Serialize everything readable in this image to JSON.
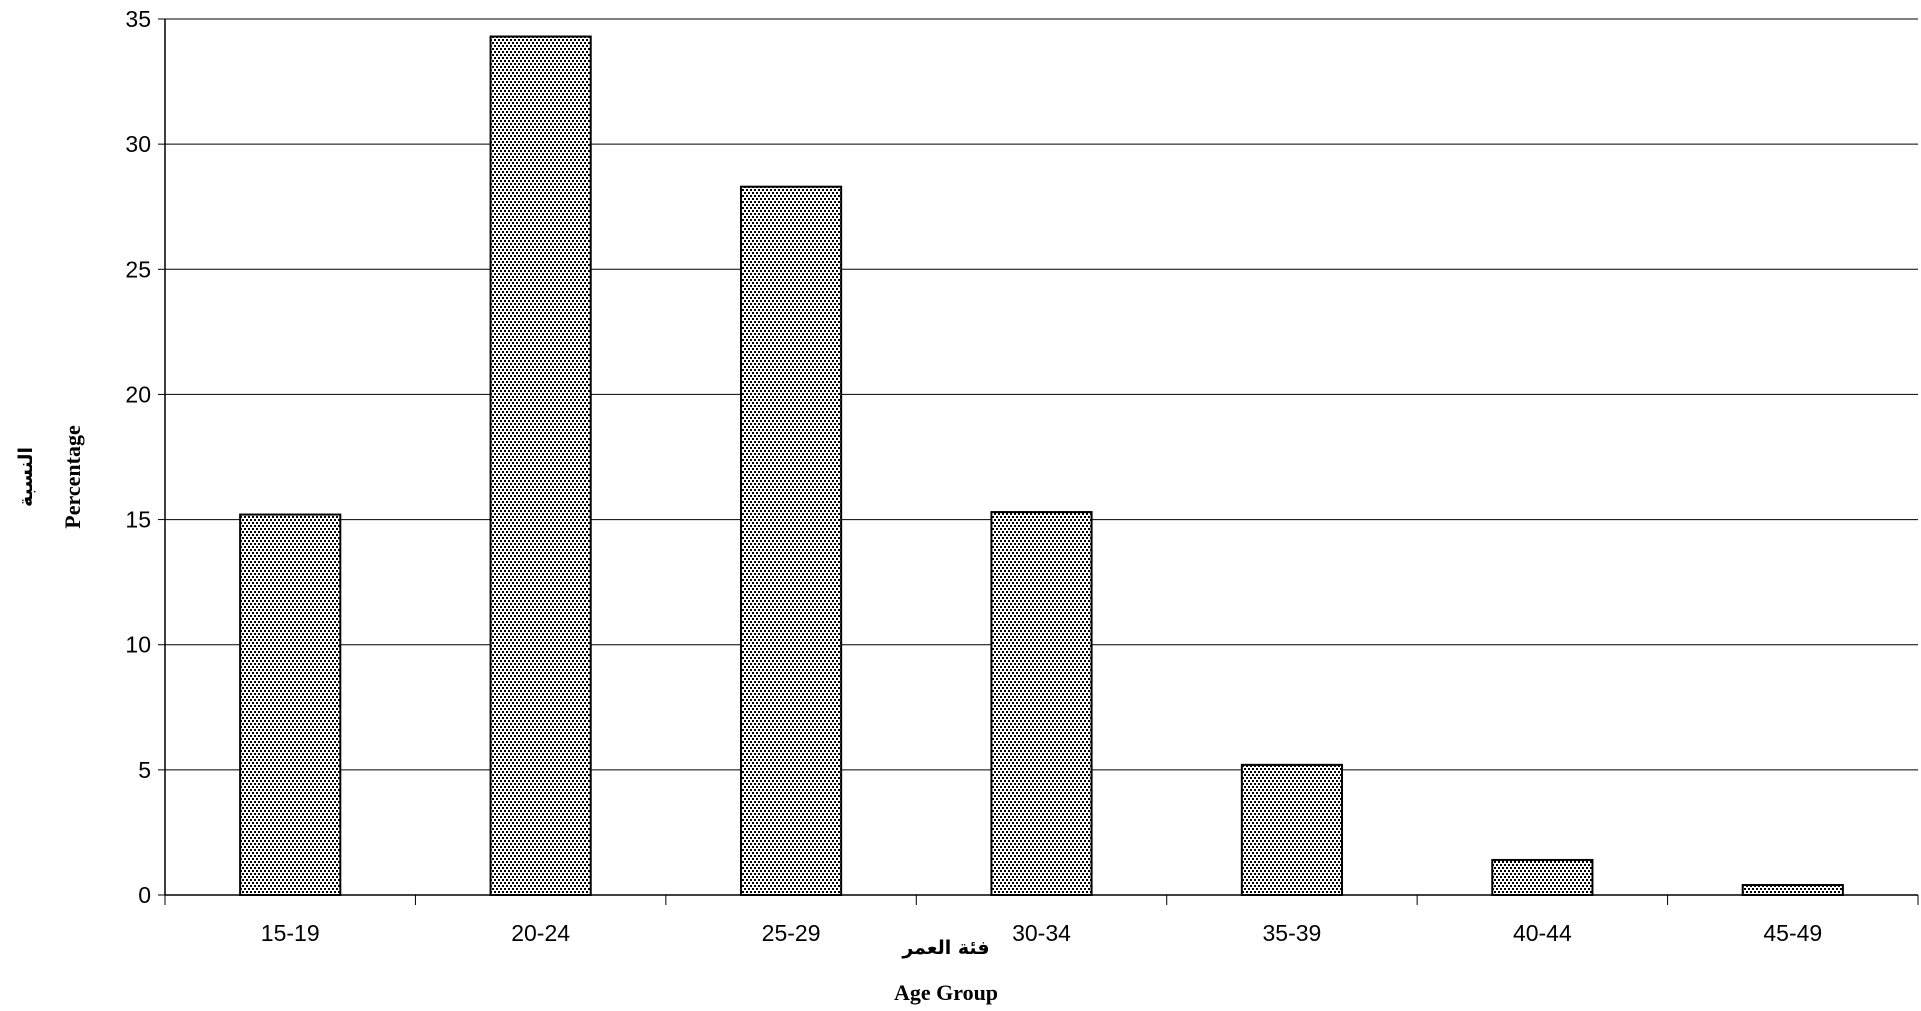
{
  "chart_data": {
    "type": "bar",
    "title": "",
    "categories": [
      "15-19",
      "20-24",
      "25-29",
      "30-34",
      "35-39",
      "40-44",
      "45-49"
    ],
    "values": [
      15.2,
      34.3,
      28.3,
      15.3,
      5.2,
      1.4,
      0.4
    ],
    "ylim": [
      0,
      35
    ],
    "yticks": [
      0,
      5,
      10,
      15,
      20,
      25,
      30,
      35
    ],
    "ylabel": "Percentage",
    "ylabel_ar": "النسبة",
    "xlabel": "Age Group",
    "xlabel_ar": "فئة العمر",
    "grid": true,
    "legend": "none",
    "colors": {
      "bar_pattern_fg": "#000000",
      "bar_pattern_bg": "#ffffff",
      "gridline": "#000000"
    }
  }
}
